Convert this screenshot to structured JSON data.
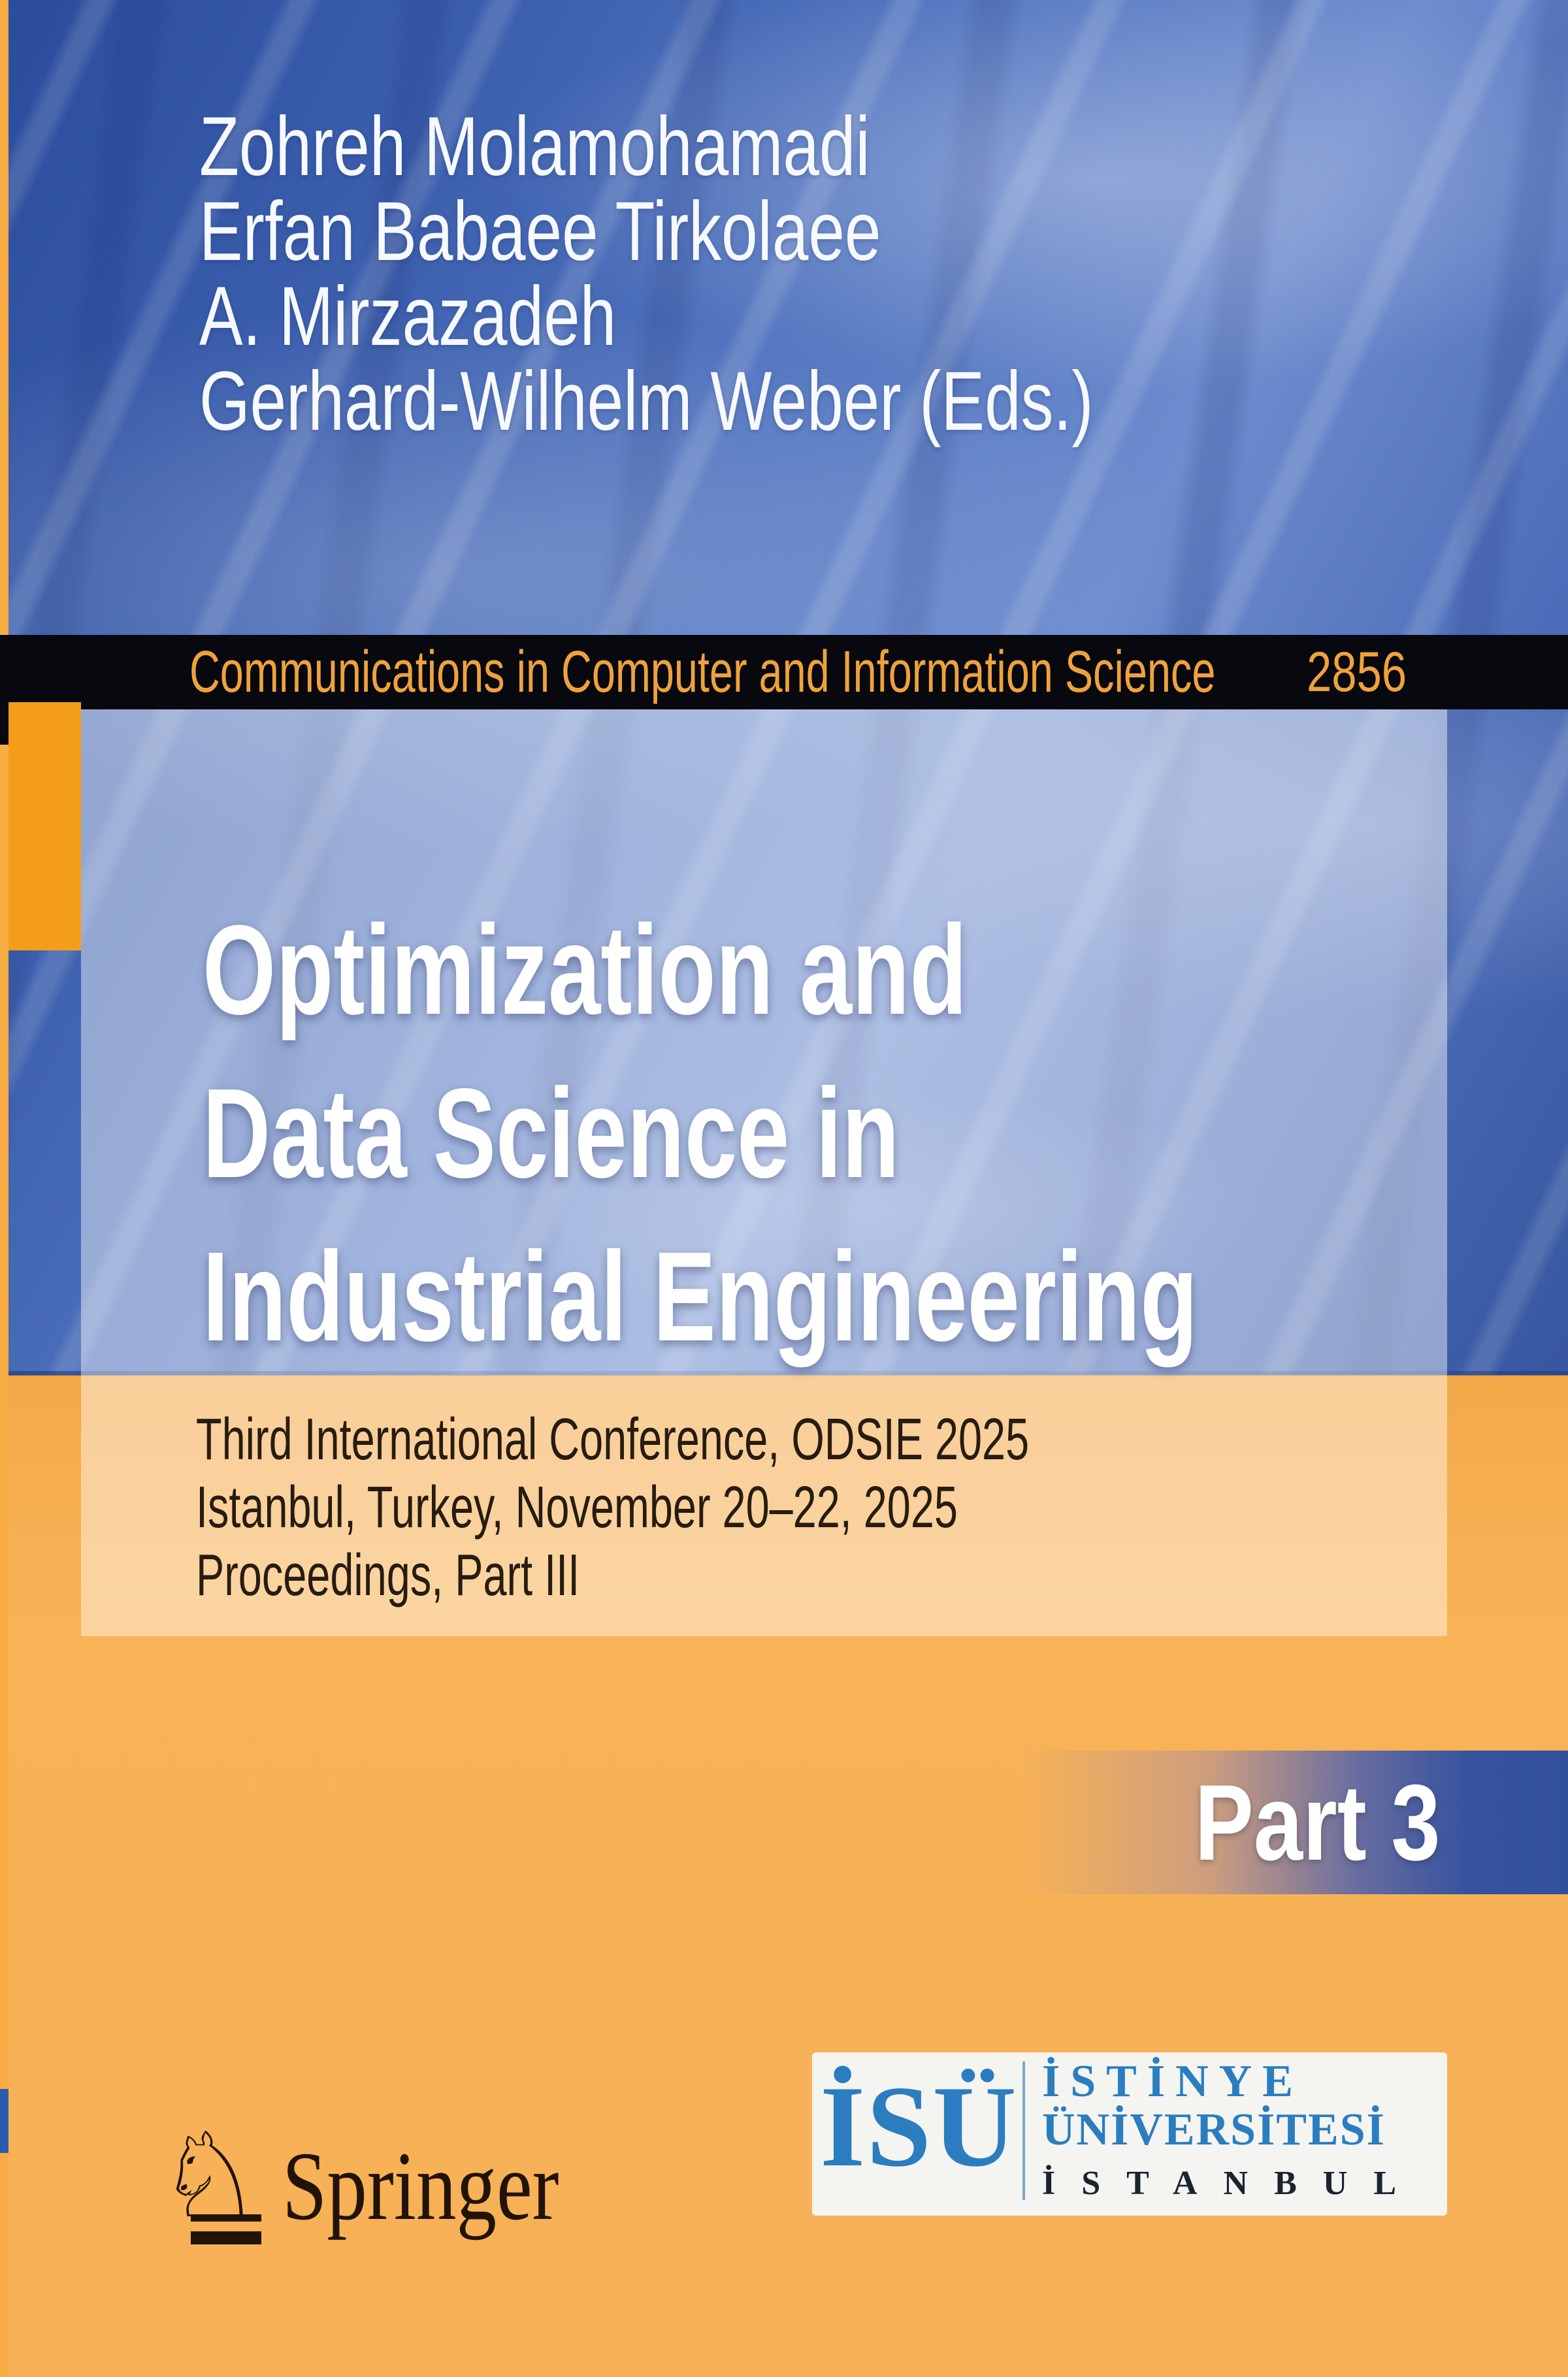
{
  "cover": {
    "authors": [
      "Zohreh Molamohamadi",
      "Erfan Babaee Tirkolaee",
      "A. Mirzazadeh",
      "Gerhard-Wilhelm Weber (Eds.)"
    ],
    "series": {
      "name": "Communications in Computer and Information Science",
      "number": "2856"
    },
    "title_lines": [
      "Optimization and",
      "Data Science in",
      "Industrial Engineering"
    ],
    "subtitle_lines": [
      "Third International Conference, ODSIE 2025",
      "Istanbul, Turkey, November 20–22, 2025",
      "Proceedings, Part III"
    ],
    "part_badge": "Part 3",
    "publisher": {
      "name": "Springer",
      "knight_icon": "♘"
    },
    "university_logo": {
      "abbrev": "İSÜ",
      "line1": "İSTİNYE",
      "line2": "ÜNİVERSİTESİ",
      "line3": "İSTANBUL"
    },
    "colors": {
      "background_blue": "#3a5dac",
      "background_orange": "#f7b055",
      "series_band": "#08080f",
      "series_text": "#efa23c",
      "accent_square_orange": "#f49d1b",
      "accent_square_blue": "#2a5ab0",
      "left_strip": "#f8ac44",
      "part_banner_blue": "#35529e",
      "title_text": "#ffffff",
      "subtitle_text": "#271c10",
      "springer_dark": "#221308",
      "isu_blue": "#2b7dc0"
    }
  }
}
